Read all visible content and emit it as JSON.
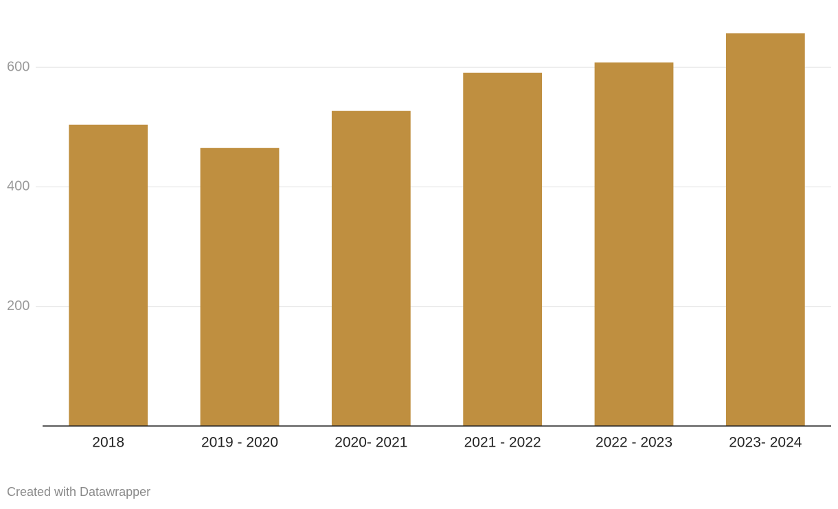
{
  "chart_data": {
    "type": "bar",
    "categories": [
      "2018",
      "2019 - 2020",
      "2020- 2021",
      "2021 - 2022",
      "2022 - 2023",
      "2023- 2024"
    ],
    "values": [
      504,
      465,
      527,
      591,
      608,
      657
    ],
    "color": "#bf8f40",
    "ylim": [
      0,
      700
    ],
    "yticks": [
      200,
      400,
      600
    ],
    "grid": true,
    "credit": "Created with Datawrapper"
  }
}
